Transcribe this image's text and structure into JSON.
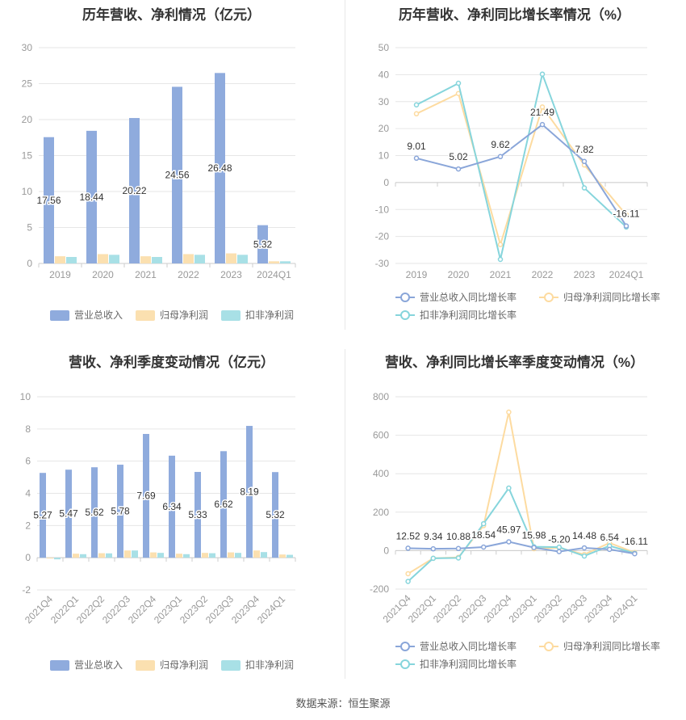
{
  "source": "数据来源：恒生聚源",
  "legend_bar": [
    "营业总收入",
    "归母净利润",
    "扣非净利润"
  ],
  "legend_line": [
    "营业总收入同比增长率",
    "归母净利润同比增长率",
    "扣非净利润同比增长率"
  ],
  "colors": {
    "revenue": "#8fabdd",
    "profit": "#fbe0b0",
    "deducted": "#a8e0e6",
    "revenue_line": "#8aa6d9",
    "profit_line": "#fddba0",
    "deducted_line": "#86d5dc",
    "axis_text": "#999999",
    "grid": "#e6e6e6"
  },
  "chart_data": [
    {
      "type": "bar",
      "title": "历年营收、净利情况（亿元）",
      "categories": [
        "2019",
        "2020",
        "2021",
        "2022",
        "2023",
        "2024Q1"
      ],
      "ylim": [
        0,
        30
      ],
      "yticks": [
        0,
        5,
        10,
        15,
        20,
        25,
        30
      ],
      "series": [
        {
          "name": "营业总收入",
          "values": [
            17.56,
            18.44,
            20.22,
            24.56,
            26.48,
            5.32
          ],
          "labels": [
            "17.56",
            "18.44",
            "20.22",
            "24.56",
            "26.48",
            "5.32"
          ]
        },
        {
          "name": "归母净利润",
          "values": [
            1.0,
            1.3,
            1.0,
            1.3,
            1.4,
            0.3
          ]
        },
        {
          "name": "扣非净利润",
          "values": [
            0.9,
            1.2,
            0.9,
            1.2,
            1.2,
            0.3
          ]
        }
      ],
      "legend": "bottom",
      "grid": true
    },
    {
      "type": "line",
      "title": "历年营收、净利同比增长率情况（%）",
      "categories": [
        "2019",
        "2020",
        "2021",
        "2022",
        "2023",
        "2024Q1"
      ],
      "ylim": [
        -30,
        50
      ],
      "yticks": [
        -30,
        -20,
        -10,
        0,
        10,
        20,
        30,
        40,
        50
      ],
      "series": [
        {
          "name": "营业总收入同比增长率",
          "values": [
            9.01,
            5.02,
            9.62,
            21.49,
            7.82,
            -16.11
          ],
          "labels": [
            "9.01",
            "5.02",
            "9.62",
            "21.49",
            "7.82",
            "-16.11"
          ]
        },
        {
          "name": "归母净利润同比增长率",
          "values": [
            25.5,
            33.0,
            -23.0,
            28.0,
            6.5,
            -12.0
          ]
        },
        {
          "name": "扣非净利润同比增长率",
          "values": [
            28.8,
            36.8,
            -28.5,
            40.2,
            -2.0,
            -16.5
          ]
        }
      ],
      "legend": "bottom",
      "grid": true
    },
    {
      "type": "bar",
      "title": "营收、净利季度变动情况（亿元）",
      "categories": [
        "2021Q4",
        "2022Q1",
        "2022Q2",
        "2022Q3",
        "2022Q4",
        "2023Q1",
        "2023Q2",
        "2023Q3",
        "2023Q4",
        "2024Q1"
      ],
      "ylim": [
        -2,
        10
      ],
      "yticks": [
        -2,
        0,
        2,
        4,
        6,
        8,
        10
      ],
      "series": [
        {
          "name": "营业总收入",
          "values": [
            5.27,
            5.47,
            5.62,
            5.78,
            7.69,
            6.34,
            5.33,
            6.62,
            8.19,
            5.32
          ],
          "labels": [
            "5.27",
            "5.47",
            "5.62",
            "5.78",
            "7.69",
            "6.34",
            "5.33",
            "6.62",
            "8.19",
            "5.32"
          ]
        },
        {
          "name": "归母净利润",
          "values": [
            -0.05,
            0.25,
            0.28,
            0.45,
            0.33,
            0.25,
            0.3,
            0.33,
            0.45,
            0.2
          ]
        },
        {
          "name": "扣非净利润",
          "values": [
            -0.1,
            0.22,
            0.27,
            0.45,
            0.3,
            0.22,
            0.28,
            0.3,
            0.35,
            0.18
          ]
        }
      ],
      "legend": "bottom",
      "grid": true
    },
    {
      "type": "line",
      "title": "营收、净利同比增长率季度变动情况（%）",
      "categories": [
        "2021Q4",
        "2022Q1",
        "2022Q2",
        "2022Q3",
        "2022Q4",
        "2023Q1",
        "2023Q2",
        "2023Q3",
        "2023Q4",
        "2024Q1"
      ],
      "ylim": [
        -200,
        800
      ],
      "yticks": [
        -200,
        0,
        200,
        400,
        600,
        800
      ],
      "series": [
        {
          "name": "营业总收入同比增长率",
          "values": [
            12.52,
            9.34,
            10.88,
            18.54,
            45.97,
            15.98,
            -5.2,
            14.48,
            6.54,
            -16.11
          ],
          "labels": [
            "12.52",
            "9.34",
            "10.88",
            "18.54",
            "45.97",
            "15.98",
            "-5.20",
            "14.48",
            "6.54",
            "-16.11"
          ]
        },
        {
          "name": "归母净利润同比增长率",
          "values": [
            -120,
            -40,
            -35,
            130,
            720,
            10,
            15,
            -20,
            40,
            -10
          ]
        },
        {
          "name": "扣非净利润同比增长率",
          "values": [
            -160,
            -40,
            -38,
            140,
            325,
            20,
            18,
            -28,
            25,
            -14
          ]
        }
      ],
      "legend": "bottom",
      "grid": true
    }
  ]
}
